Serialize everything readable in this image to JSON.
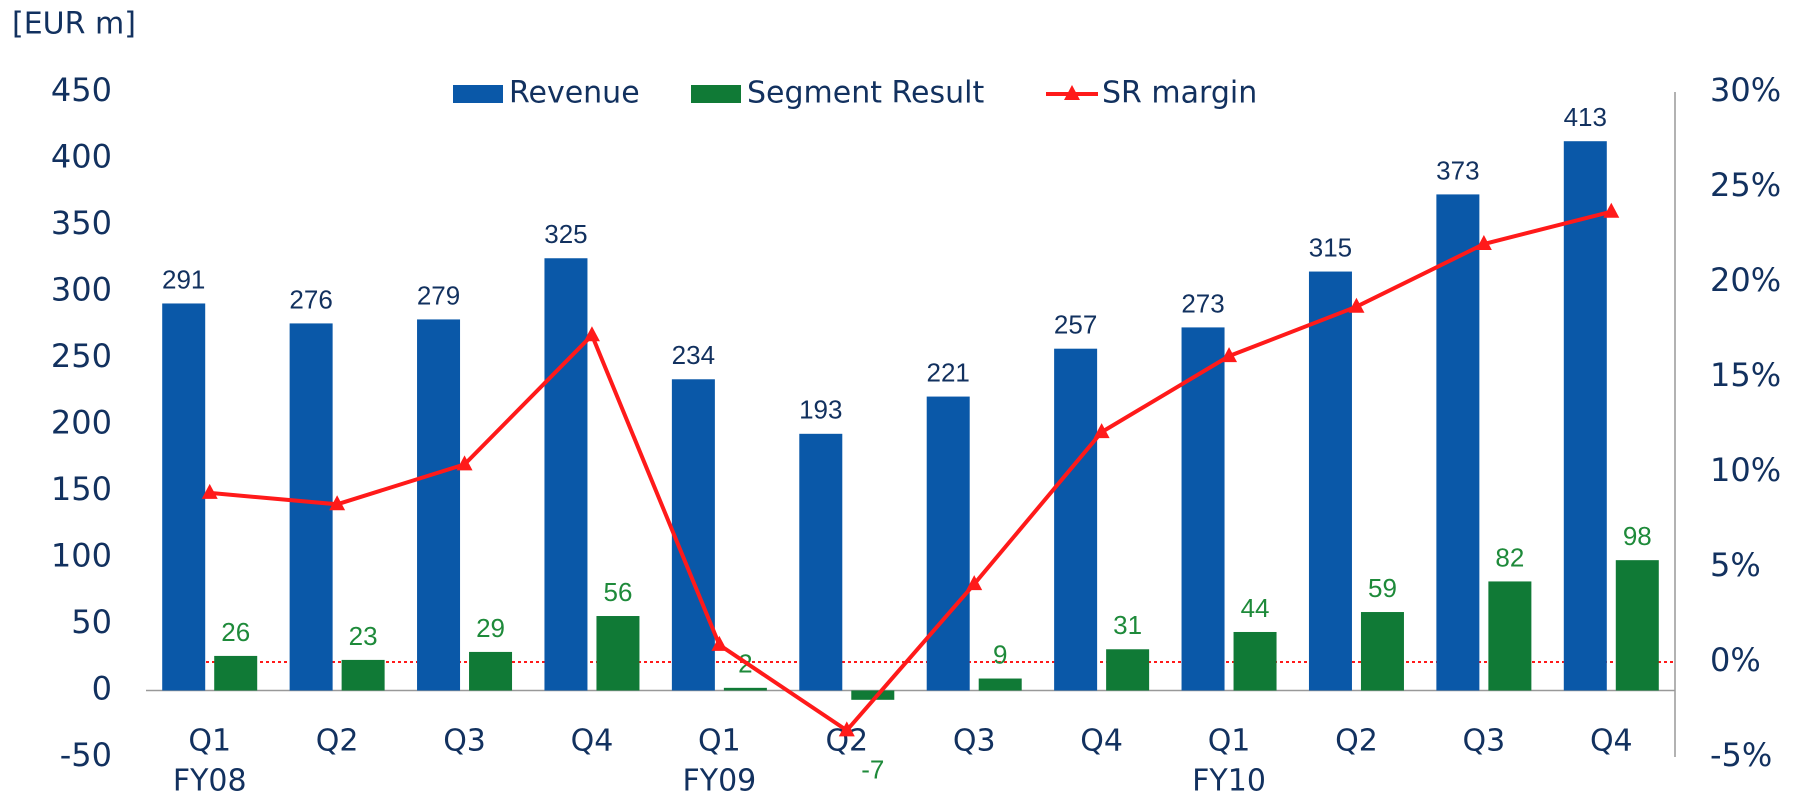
{
  "chart_data": {
    "type": "bar_line",
    "unit_label": "[EUR m]",
    "categories": [
      "Q1",
      "Q2",
      "Q3",
      "Q4",
      "Q1",
      "Q2",
      "Q3",
      "Q4",
      "Q1",
      "Q2",
      "Q3",
      "Q4"
    ],
    "category_groups": [
      "FY08",
      null,
      null,
      null,
      "FY09",
      null,
      null,
      null,
      "FY10",
      null,
      null,
      null
    ],
    "series": [
      {
        "name": "Revenue",
        "type": "bar",
        "color": "#0a58a8",
        "label_color": "#12315f",
        "values": [
          291,
          276,
          279,
          325,
          234,
          193,
          221,
          257,
          273,
          315,
          373,
          413
        ]
      },
      {
        "name": "Segment Result",
        "type": "bar",
        "color": "#107a36",
        "label_color": "#1e8a3a",
        "values": [
          26,
          23,
          29,
          56,
          2,
          -7,
          9,
          31,
          44,
          59,
          82,
          98
        ]
      },
      {
        "name": "SR margin",
        "type": "line",
        "axis": "y2",
        "color": "#ff1a1a",
        "values": [
          8.9,
          8.3,
          10.4,
          17.2,
          0.9,
          -3.6,
          4.1,
          12.1,
          16.1,
          18.7,
          22.0,
          23.7
        ]
      }
    ],
    "ylim": [
      -50,
      450
    ],
    "yticks": [
      -50,
      0,
      50,
      100,
      150,
      200,
      250,
      300,
      350,
      400,
      450
    ],
    "y2lim": [
      -5,
      30
    ],
    "y2ticks": [
      {
        "value": -5,
        "label": "-5%"
      },
      {
        "value": 0,
        "label": "0%"
      },
      {
        "value": 5,
        "label": "5%"
      },
      {
        "value": 10,
        "label": "10%"
      },
      {
        "value": 15,
        "label": "15%"
      },
      {
        "value": 20,
        "label": "20%"
      },
      {
        "value": 25,
        "label": "25%"
      },
      {
        "value": 30,
        "label": "30%"
      }
    ],
    "legend": "top"
  }
}
